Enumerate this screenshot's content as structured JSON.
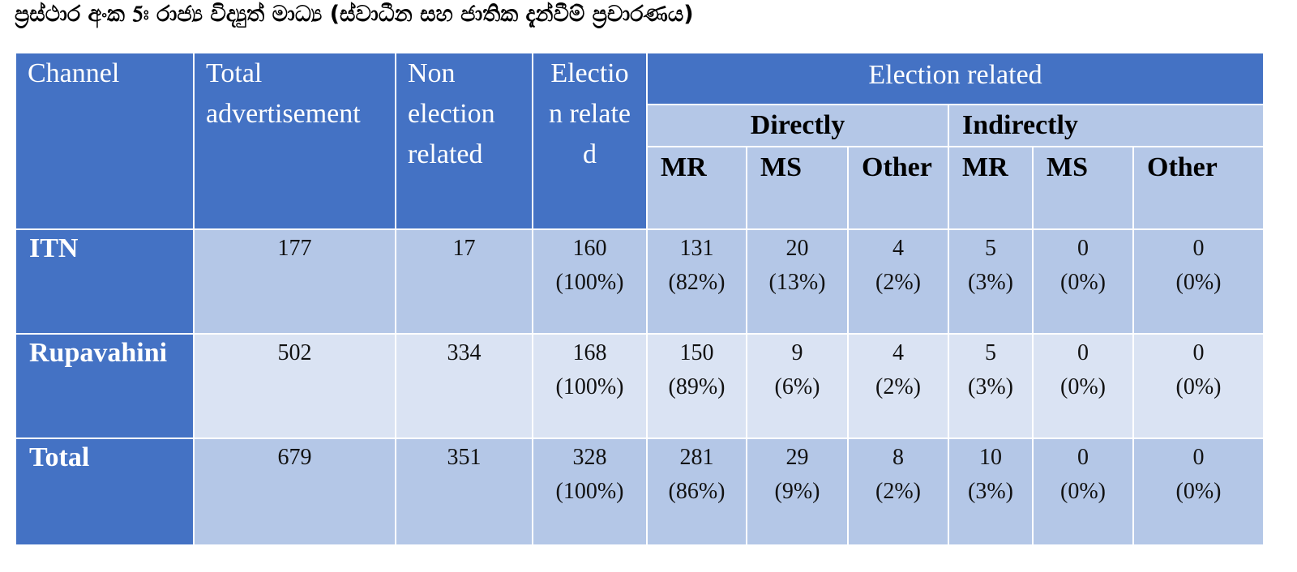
{
  "title": "ප්‍රස්ථාර අංක 5ඃ රාජ්‍ය විද්‍යුත් මාධ්‍ය (ස්වාධීන සහ ජාතික දැන්වීම් ප්‍රචාරණය)",
  "table": {
    "header": {
      "channel": "Channel",
      "total": "Total advertisement",
      "non_election": "Non election related",
      "election": "Election related",
      "election_group": "Election related",
      "directly": "Directly",
      "indirectly": "Indirectly",
      "sub": [
        "MR",
        "MS",
        "Other",
        "MR",
        "MS",
        "Other"
      ]
    },
    "rows": [
      {
        "channel": "ITN",
        "total": 177,
        "non_election": 17,
        "cells": [
          {
            "count": 160,
            "share": "(100%)"
          },
          {
            "count": 131,
            "share": "(82%)"
          },
          {
            "count": 20,
            "share": "(13%)"
          },
          {
            "count": 4,
            "share": "(2%)"
          },
          {
            "count": 5,
            "share": "(3%)"
          },
          {
            "count": 0,
            "share": "(0%)"
          },
          {
            "count": 0,
            "share": "(0%)"
          }
        ]
      },
      {
        "channel": "Rupavahini",
        "total": 502,
        "non_election": 334,
        "cells": [
          {
            "count": 168,
            "share": "(100%)"
          },
          {
            "count": 150,
            "share": "(89%)"
          },
          {
            "count": 9,
            "share": "(6%)"
          },
          {
            "count": 4,
            "share": "(2%)"
          },
          {
            "count": 5,
            "share": "(3%)"
          },
          {
            "count": 0,
            "share": "(0%)"
          },
          {
            "count": 0,
            "share": "(0%)"
          }
        ]
      },
      {
        "channel": "Total",
        "total": 679,
        "non_election": 351,
        "cells": [
          {
            "count": 328,
            "share": "(100%)"
          },
          {
            "count": 281,
            "share": "(86%)"
          },
          {
            "count": 29,
            "share": "(9%)"
          },
          {
            "count": 8,
            "share": "(2%)"
          },
          {
            "count": 10,
            "share": "(3%)"
          },
          {
            "count": 0,
            "share": "(0%)"
          },
          {
            "count": 0,
            "share": "(0%)"
          }
        ]
      }
    ]
  }
}
